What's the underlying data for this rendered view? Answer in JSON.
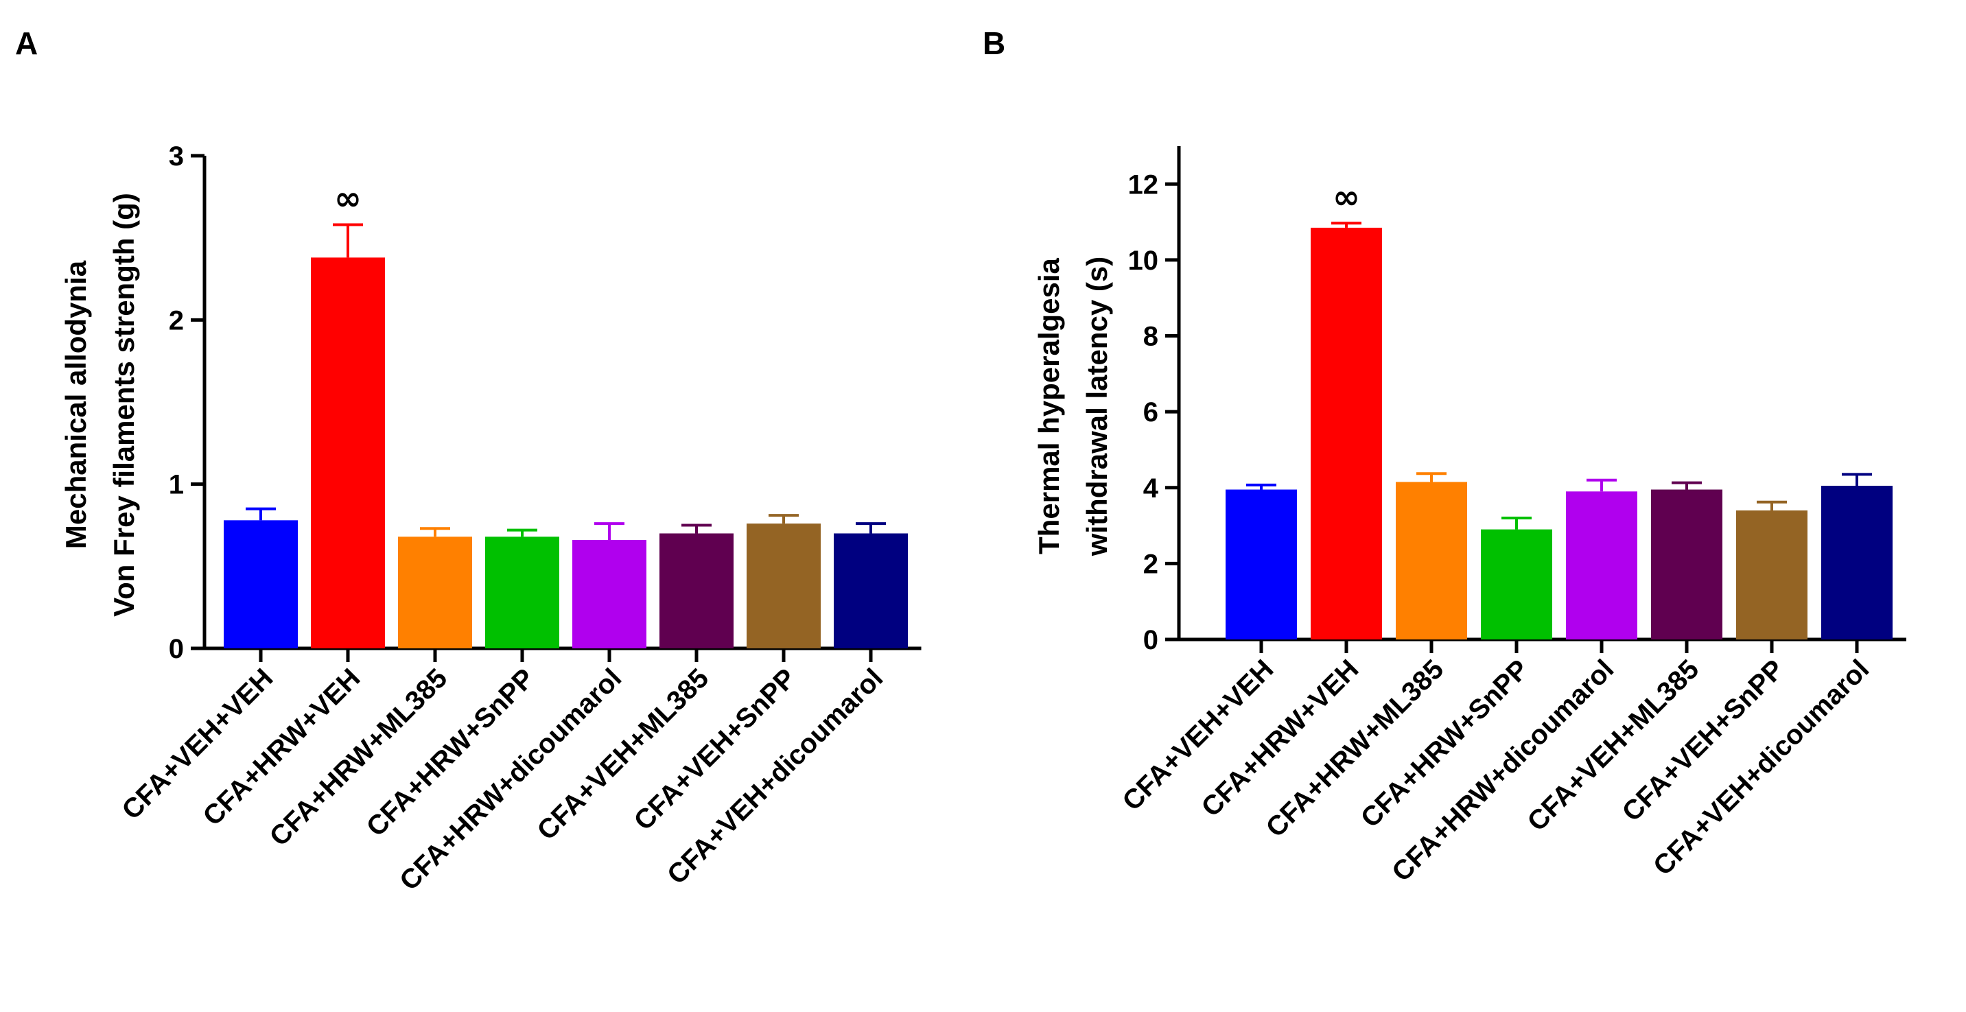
{
  "chart_data": [
    {
      "panel": "A",
      "type": "bar",
      "ylabel_lines": [
        "Mechanical allodynia",
        "Von Frey filaments strength (g)"
      ],
      "ylim": [
        0,
        3
      ],
      "yticks": [
        0,
        1,
        2,
        3
      ],
      "ytick_labels": [
        "0",
        "1",
        "2",
        "3"
      ],
      "categories": [
        "CFA+VEH+VEH",
        "CFA+HRW+VEH",
        "CFA+HRW+ML385",
        "CFA+HRW+SnPP",
        "CFA+HRW+dicoumarol",
        "CFA+VEH+ML385",
        "CFA+VEH+SnPP",
        "CFA+VEH+dicoumarol"
      ],
      "values": [
        0.78,
        2.38,
        0.68,
        0.68,
        0.66,
        0.7,
        0.76,
        0.7
      ],
      "errors": [
        0.07,
        0.2,
        0.05,
        0.04,
        0.1,
        0.05,
        0.05,
        0.06
      ],
      "colors": [
        "#0000ff",
        "#ff0000",
        "#ff8000",
        "#00c000",
        "#b000ee",
        "#600050",
        "#946424",
        "#000080"
      ],
      "annotations": [
        {
          "category_index": 1,
          "text": "∞"
        }
      ]
    },
    {
      "panel": "B",
      "type": "bar",
      "ylabel_lines": [
        "Thermal hyperalgesia",
        "withdrawal latency (s)"
      ],
      "ylim": [
        0,
        13
      ],
      "yticks": [
        0,
        2,
        4,
        6,
        8,
        10,
        12
      ],
      "ytick_labels": [
        "0",
        "2",
        "4",
        "6",
        "8",
        "10",
        "12"
      ],
      "categories": [
        "CFA+VEH+VEH",
        "CFA+HRW+VEH",
        "CFA+HRW+ML385",
        "CFA+HRW+SnPP",
        "CFA+HRW+dicoumarol",
        "CFA+VEH+ML385",
        "CFA+VEH+SnPP",
        "CFA+VEH+dicoumarol"
      ],
      "values": [
        3.95,
        10.85,
        4.15,
        2.9,
        3.9,
        3.95,
        3.4,
        4.05
      ],
      "errors": [
        0.12,
        0.12,
        0.22,
        0.3,
        0.3,
        0.18,
        0.22,
        0.3
      ],
      "colors": [
        "#0000ff",
        "#ff0000",
        "#ff8000",
        "#00c000",
        "#b000ee",
        "#600050",
        "#946424",
        "#000080"
      ],
      "annotations": [
        {
          "category_index": 1,
          "text": "∞"
        }
      ]
    }
  ],
  "panel_labels": {
    "a": "A",
    "b": "B"
  }
}
